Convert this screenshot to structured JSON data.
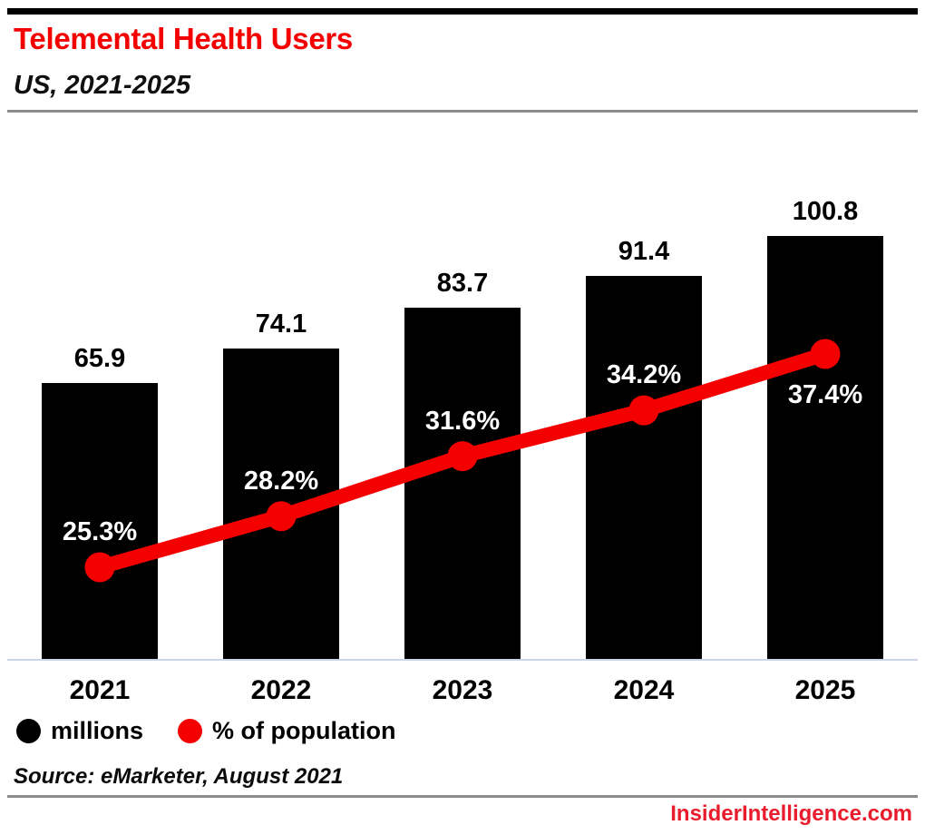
{
  "header": {
    "title": "Telemental Health Users",
    "subtitle": "US, 2021-2025"
  },
  "chart_data": {
    "type": "bar",
    "title": "Telemental Health Users",
    "subtitle": "US, 2021-2025",
    "categories": [
      "2021",
      "2022",
      "2023",
      "2024",
      "2025"
    ],
    "series": [
      {
        "name": "millions",
        "type": "bar",
        "color": "#000000",
        "values": [
          65.9,
          74.1,
          83.7,
          91.4,
          100.8
        ],
        "data_labels": [
          "65.9",
          "74.1",
          "83.7",
          "91.4",
          "100.8"
        ],
        "data_label_color": "#000000"
      },
      {
        "name": "% of population",
        "type": "line",
        "color": "#f40000",
        "values": [
          25.3,
          28.2,
          31.6,
          34.2,
          37.4
        ],
        "data_labels": [
          "25.3%",
          "28.2%",
          "31.6%",
          "34.2%",
          "37.4%"
        ],
        "data_label_color": "#ffffff",
        "data_label_position": [
          "above",
          "above",
          "above",
          "above",
          "below"
        ]
      }
    ],
    "xlabel": "",
    "ylabel": "",
    "grid": false,
    "y_axis_visible": false,
    "legend_position": "bottom-left"
  },
  "legend": {
    "items": [
      {
        "label": "millions",
        "color": "#000000"
      },
      {
        "label": "% of population",
        "color": "#f40000"
      }
    ]
  },
  "source": {
    "text": "Source: eMarketer, August 2021"
  },
  "footer": {
    "site": "InsiderIntelligence.com"
  },
  "colors": {
    "accent_red": "#f40000",
    "footer_red": "#e81c2c",
    "bar_black": "#000000",
    "axis_baseline": "#cdd4e4",
    "rule_gray": "#8c8c8c",
    "top_bar": "#000000",
    "background": "#ffffff"
  }
}
